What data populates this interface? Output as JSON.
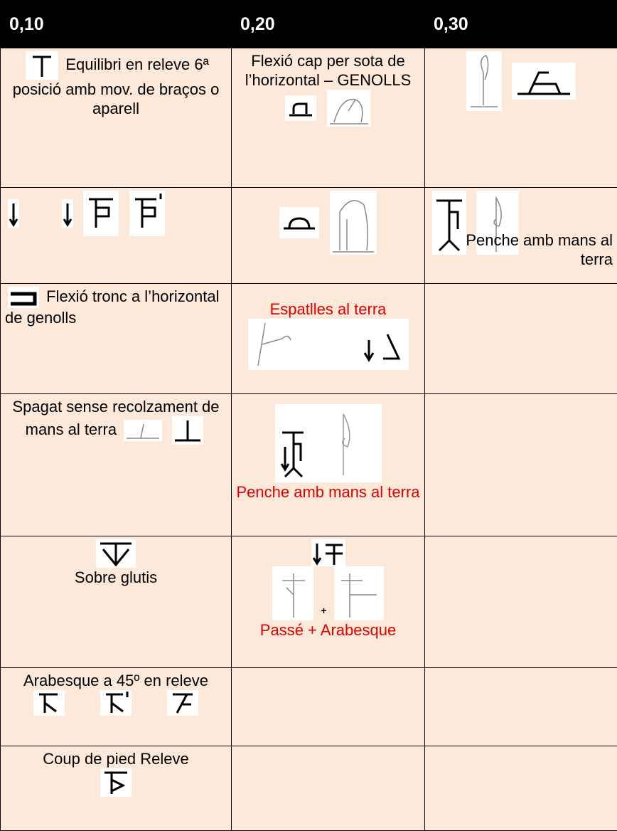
{
  "table": {
    "header": [
      "0,10",
      "0,20",
      "0,30"
    ],
    "rows": [
      [
        "Equilibri en releve 6ª posició amb mov. de braços o aparell",
        "Flexió cap per sota de l’horizontal – GENOLLS",
        null
      ],
      [
        null,
        null,
        "Penche amb mans al terra"
      ],
      [
        "Flexió tronc a l’horizontal de genolls",
        "Espatlles al terra",
        null
      ],
      [
        "Spagat sense recolzament de mans al terra",
        "Penche amb mans al terra",
        null
      ],
      [
        "Sobre glutis",
        {
          "sign": "+",
          "text": "Passé + Arabesque"
        },
        null
      ],
      [
        "Arabesque a 45º en releve",
        null,
        null
      ],
      [
        "Coup de pied Releve",
        null,
        null
      ]
    ]
  }
}
